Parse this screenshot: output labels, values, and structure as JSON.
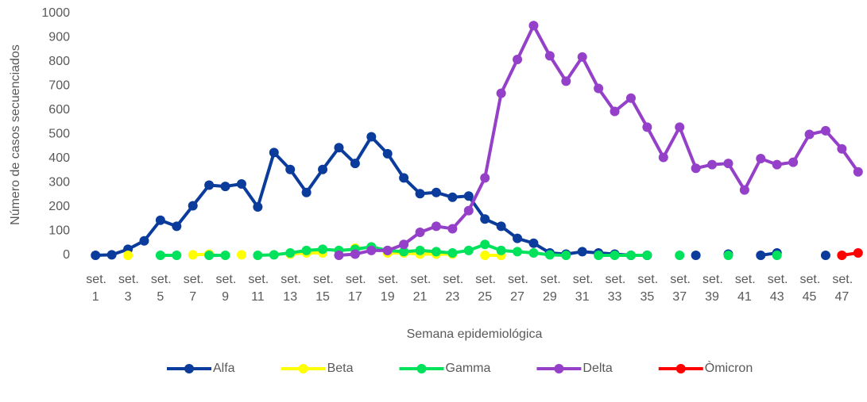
{
  "chart_data": {
    "type": "line",
    "y_label": "Número de casos secuenciados",
    "x_label": "Semana epidemiológica",
    "categories": [
      "set. 1",
      null,
      "set. 3",
      null,
      "set. 5",
      null,
      "set. 7",
      null,
      "set. 9",
      null,
      "set. 11",
      null,
      "set. 13",
      null,
      "set. 15",
      null,
      "set. 17",
      null,
      "set. 19",
      null,
      "set. 21",
      null,
      "set. 23",
      null,
      "set. 25",
      null,
      "set. 27",
      null,
      "set. 29",
      null,
      "set. 31",
      null,
      "set. 33",
      null,
      "set. 35",
      null,
      "set. 37",
      null,
      "set. 39",
      null,
      "set. 41",
      null,
      "set. 43",
      null,
      "set. 45",
      null,
      "set. 47",
      null
    ],
    "series": [
      {
        "name": "Alfa",
        "color": "#0b3c9c",
        "values": [
          0,
          2,
          25,
          60,
          145,
          120,
          205,
          290,
          285,
          295,
          200,
          425,
          355,
          260,
          355,
          445,
          380,
          490,
          420,
          320,
          255,
          260,
          240,
          245,
          150,
          120,
          70,
          50,
          10,
          5,
          15,
          10,
          5,
          0,
          0,
          null,
          null,
          0,
          null,
          5,
          null,
          0,
          10,
          null,
          null,
          0,
          null,
          null
        ]
      },
      {
        "name": "Beta",
        "color": "#ffff00",
        "values": [
          null,
          null,
          0,
          null,
          null,
          null,
          2,
          5,
          null,
          2,
          null,
          null,
          5,
          10,
          10,
          null,
          30,
          null,
          10,
          10,
          5,
          5,
          5,
          null,
          0,
          0,
          null,
          null,
          null,
          null,
          null,
          null,
          null,
          null,
          null,
          null,
          null,
          null,
          null,
          null,
          null,
          null,
          null,
          null,
          null,
          null,
          null,
          null
        ]
      },
      {
        "name": "Gamma",
        "color": "#00e25b",
        "values": [
          null,
          null,
          null,
          null,
          0,
          0,
          null,
          0,
          0,
          null,
          0,
          2,
          10,
          20,
          25,
          20,
          25,
          35,
          20,
          15,
          20,
          15,
          10,
          20,
          45,
          20,
          15,
          10,
          2,
          0,
          null,
          0,
          0,
          0,
          0,
          null,
          0,
          null,
          null,
          0,
          null,
          null,
          0,
          null,
          null,
          null,
          null,
          null
        ]
      },
      {
        "name": "Delta",
        "color": "#9440c8",
        "values": [
          null,
          null,
          null,
          null,
          null,
          null,
          null,
          null,
          null,
          null,
          null,
          null,
          null,
          null,
          null,
          0,
          5,
          20,
          20,
          45,
          95,
          120,
          110,
          185,
          320,
          670,
          810,
          950,
          825,
          720,
          820,
          690,
          595,
          650,
          530,
          405,
          530,
          360,
          375,
          380,
          270,
          400,
          375,
          385,
          500,
          515,
          440,
          345
        ]
      },
      {
        "name": "Òmicron",
        "color": "#ff0000",
        "values": [
          null,
          null,
          null,
          null,
          null,
          null,
          null,
          null,
          null,
          null,
          null,
          null,
          null,
          null,
          null,
          null,
          null,
          null,
          null,
          null,
          null,
          null,
          null,
          null,
          null,
          null,
          null,
          null,
          null,
          null,
          null,
          null,
          null,
          null,
          null,
          null,
          null,
          null,
          null,
          null,
          null,
          null,
          null,
          null,
          null,
          null,
          0,
          10
        ]
      }
    ],
    "ylim": [
      0,
      1000
    ],
    "yticks": [
      0,
      100,
      200,
      300,
      400,
      500,
      600,
      700,
      800,
      900,
      1000
    ],
    "grid": false
  }
}
